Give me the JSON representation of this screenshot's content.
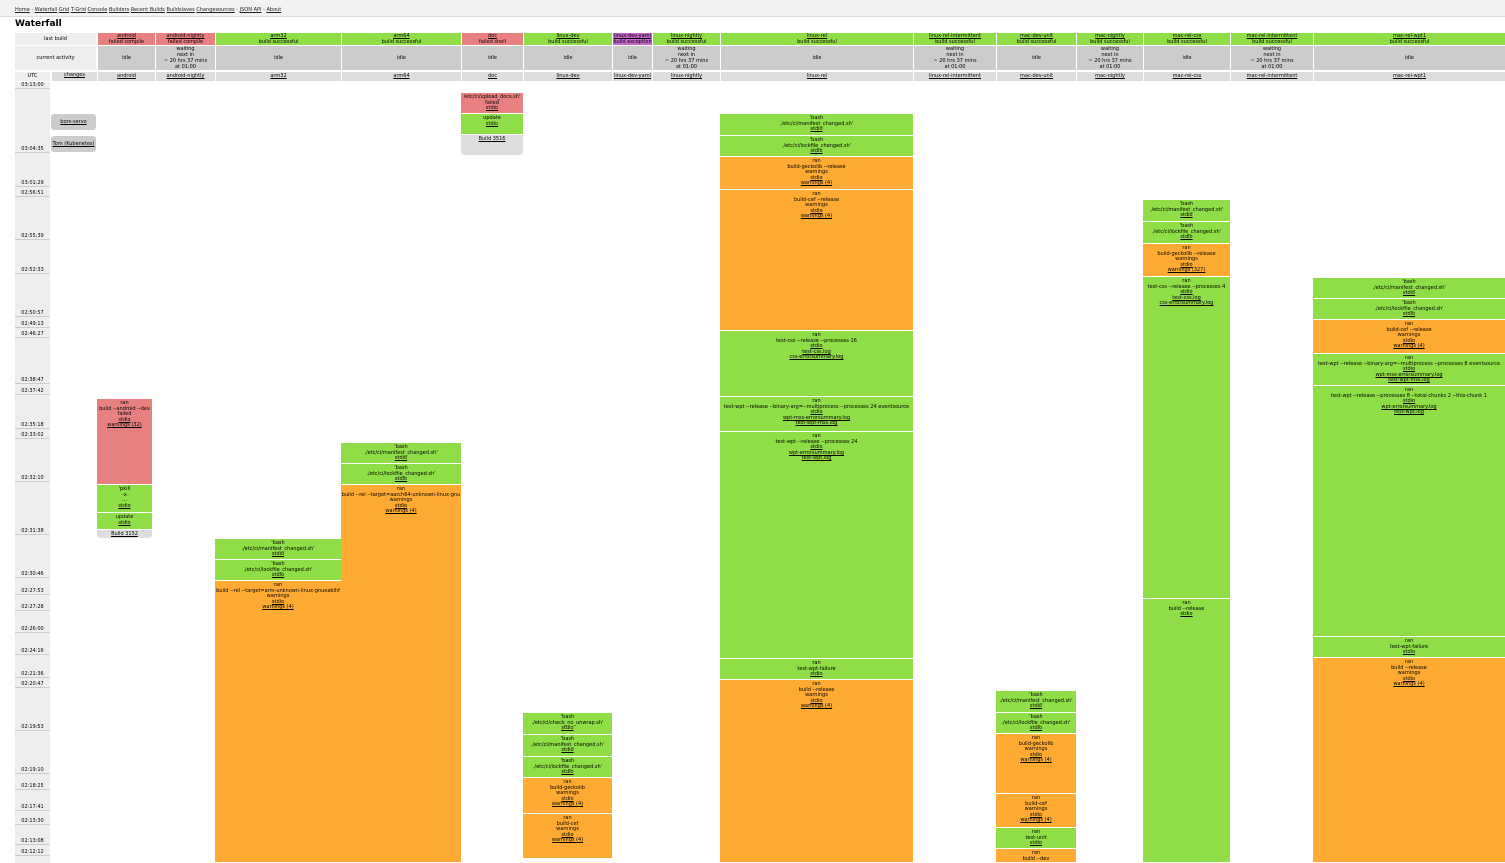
{
  "nav": {
    "links": [
      "Home",
      "Waterfall",
      "Grid",
      "T-Grid",
      "Console",
      "Builders",
      "Recent Builds",
      "Buildslaves",
      "Changesources",
      "JSON API",
      "About"
    ]
  },
  "page_title": "Waterfall",
  "row_labels": {
    "last_build": "last build",
    "current_activity": "current activity",
    "utc": "UTC",
    "changes": "changes"
  },
  "builders": [
    {
      "name": "android",
      "last": "failed compile",
      "status": "red",
      "activity": "idle"
    },
    {
      "name": "android-nightly",
      "last": "failed compile",
      "status": "red",
      "activity": "waiting\nnext in\n~ 20 hrs 37 mins\nat 01:00"
    },
    {
      "name": "arm32",
      "last": "build successful",
      "status": "green",
      "activity": "idle"
    },
    {
      "name": "arm64",
      "last": "build successful",
      "status": "green",
      "activity": "idle"
    },
    {
      "name": "doc",
      "last": "failed shell",
      "status": "red",
      "activity": "idle"
    },
    {
      "name": "linux-dev",
      "last": "build successful",
      "status": "green",
      "activity": "idle"
    },
    {
      "name": "linux-dev-yaml",
      "last": "build exception",
      "status": "purple",
      "activity": "idle"
    },
    {
      "name": "linux-nightly",
      "last": "build successful",
      "status": "green",
      "activity": "waiting\nnext in\n~ 20 hrs 37 mins\nat 01:00"
    },
    {
      "name": "linux-rel",
      "last": "build successful",
      "status": "green",
      "activity": "idle"
    },
    {
      "name": "linux-rel-intermittent",
      "last": "build successful",
      "status": "green",
      "activity": "waiting\nnext in\n~ 20 hrs 37 mins\nat 01:00"
    },
    {
      "name": "mac-dev-unit",
      "last": "build successful",
      "status": "green",
      "activity": "idle"
    },
    {
      "name": "mac-nightly",
      "last": "build successful",
      "status": "green",
      "activity": "waiting\nnext in\n~ 20 hrs 37 mins\nat 01:00"
    },
    {
      "name": "mac-rel-css",
      "last": "build successful",
      "status": "green",
      "activity": "idle"
    },
    {
      "name": "mac-rel-intermittent",
      "last": "build successful",
      "status": "green",
      "activity": "waiting\nnext in\n~ 20 hrs 37 mins\nat 01:00"
    },
    {
      "name": "mac-rel-wpt1",
      "last": "build successful",
      "status": "green",
      "activity": "idle"
    }
  ],
  "times": [
    "03:13:00",
    "03:04:35",
    "03:01:29",
    "02:56:51",
    "02:55:39",
    "02:52:33",
    "02:50:57",
    "02:49:13",
    "02:46:27",
    "02:38:47",
    "02:37:42",
    "02:35:18",
    "02:33:02",
    "02:32:10",
    "02:31:38",
    "02:30:46",
    "02:27:53",
    "02:27:28",
    "02:26:00",
    "02:24:16",
    "02:21:36",
    "02:20:47",
    "02:19:53",
    "02:19:10",
    "02:18:25",
    "02:17:41",
    "02:13:30",
    "02:13:08",
    "02:12:12"
  ],
  "changes": [
    "bors-servo",
    "Tom (Kubenetes)"
  ],
  "steps": {
    "doc": [
      {
        "lines": [
          "/etc/ci/upload_docs.sh'",
          "failed"
        ],
        "links": [
          "stdio"
        ]
      },
      {
        "lines": [
          "update"
        ],
        "links": [
          "stdio"
        ]
      },
      {
        "lines": [],
        "links": [
          "Build 3516"
        ]
      }
    ],
    "android": [
      {
        "lines": [
          "ran",
          "build --android --dev",
          "failed"
        ],
        "links": [
          "stdio",
          "warnings (32)"
        ]
      },
      {
        "lines": [
          "'pkill",
          "-x",
          "..."
        ],
        "links": [
          "stdio"
        ]
      },
      {
        "lines": [
          "update"
        ],
        "links": [
          "stdio"
        ]
      },
      {
        "lines": [],
        "links": [
          "Build 3152"
        ]
      }
    ],
    "arm32": [
      {
        "lines": [
          "'bash",
          "./etc/ci/manifest_changed.sh'"
        ],
        "links": [
          "stdio"
        ]
      },
      {
        "lines": [
          "'bash",
          "./etc/ci/lockfile_changed.sh'"
        ],
        "links": [
          "stdio"
        ]
      },
      {
        "lines": [
          "ran",
          "build --rel --target=arm-unknown-linux-gnueabihf",
          "warnings"
        ],
        "links": [
          "stdio",
          "warnings (4)"
        ]
      }
    ],
    "arm64": [
      {
        "lines": [
          "'bash",
          "./etc/ci/manifest_changed.sh'"
        ],
        "links": [
          "stdio"
        ]
      },
      {
        "lines": [
          "'bash",
          "./etc/ci/lockfile_changed.sh'"
        ],
        "links": [
          "stdio"
        ]
      },
      {
        "lines": [
          "ran",
          "build --rel --target=aarch64-unknown-linux-gnu",
          "warnings"
        ],
        "links": [
          "stdio",
          "warnings (4)"
        ]
      }
    ],
    "linux_dev": [
      {
        "lines": [
          "'bash",
          "./etc/ci/check_no_unwrap.sh'"
        ],
        "links": [
          "stdio"
        ]
      },
      {
        "lines": [
          "'bash",
          "./etc/ci/manifest_changed.sh'"
        ],
        "links": [
          "stdio"
        ]
      },
      {
        "lines": [
          "'bash",
          "./etc/ci/lockfile_changed.sh'"
        ],
        "links": [
          "stdio"
        ]
      },
      {
        "lines": [
          "ran",
          "build-geckolib",
          "warnings"
        ],
        "links": [
          "stdio",
          "warnings (4)"
        ]
      },
      {
        "lines": [
          "ran",
          "build-cef",
          "warnings"
        ],
        "links": [
          "stdio",
          "warnings (4)"
        ]
      }
    ],
    "linux_rel": [
      {
        "lines": [
          "'bash",
          "./etc/ci/manifest_changed.sh'"
        ],
        "links": [
          "stdio"
        ]
      },
      {
        "lines": [
          "'bash",
          "./etc/ci/lockfile_changed.sh'"
        ],
        "links": [
          "stdio"
        ]
      },
      {
        "lines": [
          "ran",
          "build-geckolib --release",
          "warnings"
        ],
        "links": [
          "stdio",
          "warnings (4)"
        ]
      },
      {
        "lines": [
          "ran",
          "build-cef --release",
          "warnings"
        ],
        "links": [
          "stdio",
          "warnings (4)"
        ]
      },
      {
        "lines": [
          "ran",
          "test-css --release --processes 16"
        ],
        "links": [
          "stdio",
          "test-css.log",
          "css-errorsummary.log"
        ]
      },
      {
        "lines": [
          "ran",
          "test-wpt --release --binary-arg=--multiprocess --processes 24 eventsource"
        ],
        "links": [
          "stdio",
          "wpt-mss-errorsummary.log",
          "test-wpt-mss.log"
        ]
      },
      {
        "lines": [
          "ran",
          "test-wpt --release --processes 24"
        ],
        "links": [
          "stdio",
          "wpt-errorsummary.log",
          "test-wpt.log"
        ]
      },
      {
        "lines": [
          "ran",
          "test-wpt-failure"
        ],
        "links": [
          "stdio"
        ]
      },
      {
        "lines": [
          "ran",
          "build --release",
          "warnings"
        ],
        "links": [
          "stdio",
          "warnings (4)"
        ]
      }
    ],
    "mac_dev_unit": [
      {
        "lines": [
          "'bash",
          "./etc/ci/manifest_changed.sh'"
        ],
        "links": [
          "stdio"
        ]
      },
      {
        "lines": [
          "'bash",
          "./etc/ci/lockfile_changed.sh'"
        ],
        "links": [
          "stdio"
        ]
      },
      {
        "lines": [
          "ran",
          "build-geckolib",
          "warnings"
        ],
        "links": [
          "stdio",
          "warnings (4)"
        ]
      },
      {
        "lines": [
          "ran",
          "build-cef",
          "warnings"
        ],
        "links": [
          "stdio",
          "warnings (4)"
        ]
      },
      {
        "lines": [
          "ran",
          "test-unit"
        ],
        "links": [
          "stdio"
        ]
      },
      {
        "lines": [
          "ran",
          "build --dev"
        ],
        "links": []
      }
    ],
    "mac_rel_css": [
      {
        "lines": [
          "'bash",
          "./etc/ci/manifest_changed.sh'"
        ],
        "links": [
          "stdio"
        ]
      },
      {
        "lines": [
          "'bash",
          "./etc/ci/lockfile_changed.sh'"
        ],
        "links": [
          "stdio"
        ]
      },
      {
        "lines": [
          "ran",
          "build-geckolib --release",
          "warnings"
        ],
        "links": [
          "stdio",
          "warnings (327)"
        ]
      },
      {
        "lines": [
          "ran",
          "test-css --release --processes 4"
        ],
        "links": [
          "stdio",
          "test-css.log",
          "css-errorsummary.log"
        ]
      },
      {
        "lines": [
          "ran",
          "build --release"
        ],
        "links": [
          "stdio"
        ]
      }
    ],
    "mac_rel_wpt1": [
      {
        "lines": [
          "'bash",
          "./etc/ci/manifest_changed.sh'"
        ],
        "links": [
          "stdio"
        ]
      },
      {
        "lines": [
          "'bash",
          "./etc/ci/lockfile_changed.sh'"
        ],
        "links": [
          "stdio"
        ]
      },
      {
        "lines": [
          "ran",
          "build-cef --release",
          "warnings"
        ],
        "links": [
          "stdio",
          "warnings (4)"
        ]
      },
      {
        "lines": [
          "ran",
          "test-wpt --release --binary-arg=--multiprocess --processes 8 eventsource"
        ],
        "links": [
          "stdio",
          "wpt-mss-errorsummary.log",
          "test-wpt-mss.log"
        ]
      },
      {
        "lines": [
          "ran",
          "test-wpt --release --processes 8 --total-chunks 2 --this-chunk 1"
        ],
        "links": [
          "stdio",
          "wpt-errorsummary.log",
          "test-wpt.log"
        ]
      },
      {
        "lines": [
          "ran",
          "test-wpt-failure"
        ],
        "links": [
          "stdio"
        ]
      },
      {
        "lines": [
          "ran",
          "build --release",
          "warnings"
        ],
        "links": [
          "stdio",
          "warnings (4)"
        ]
      }
    ]
  }
}
